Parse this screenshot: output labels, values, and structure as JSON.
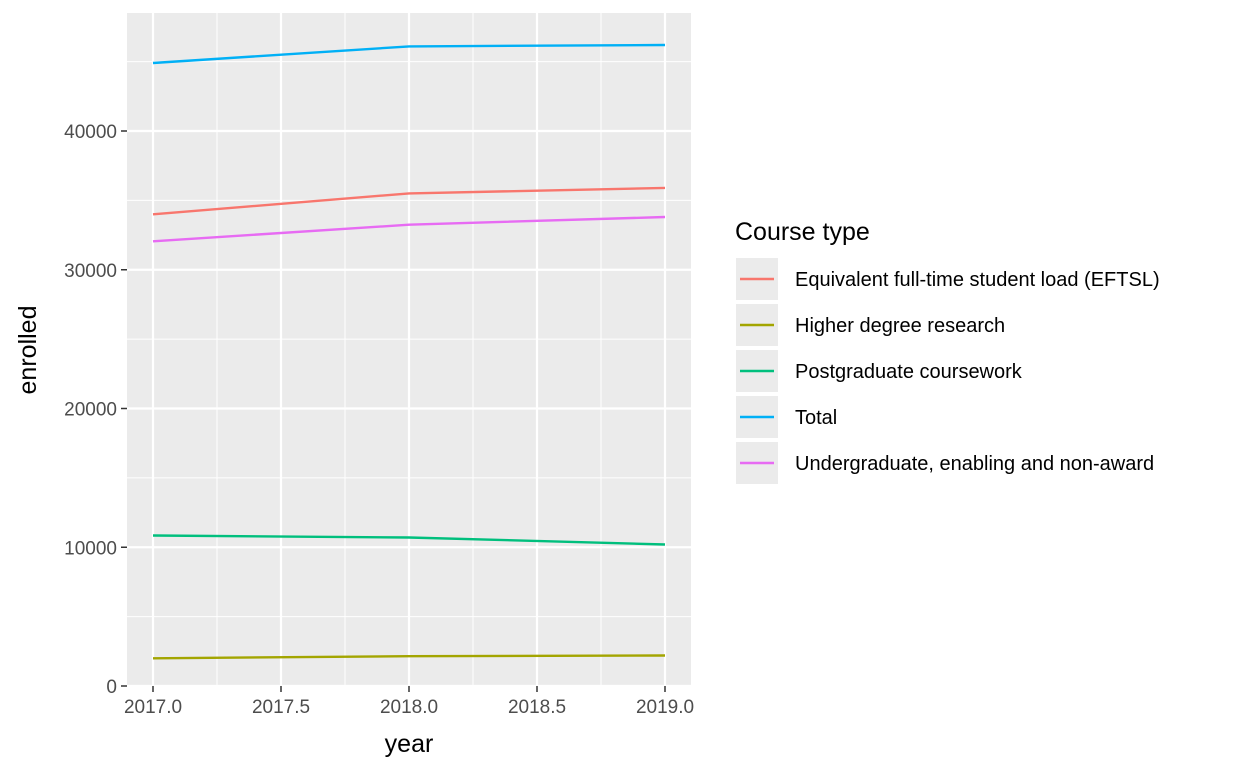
{
  "chart_data": {
    "type": "line",
    "title": "",
    "xlabel": "year",
    "ylabel": "enrolled",
    "xlim": [
      2017.0,
      2019.0
    ],
    "ylim": [
      0,
      47000
    ],
    "x_ticks": [
      2017.0,
      2017.5,
      2018.0,
      2018.5,
      2019.0
    ],
    "x_tick_labels": [
      "2017.0",
      "2017.5",
      "2018.0",
      "2018.5",
      "2019.0"
    ],
    "y_ticks": [
      0,
      10000,
      20000,
      30000,
      40000
    ],
    "y_tick_labels": [
      "0",
      "10000",
      "20000",
      "30000",
      "40000"
    ],
    "grid": true,
    "legend": {
      "title": "Course type",
      "placement": "right"
    },
    "x": [
      2017,
      2018,
      2019
    ],
    "series": [
      {
        "name": "Equivalent full-time student load (EFTSL)",
        "color": "#F8766D",
        "values": [
          34000,
          35500,
          35900
        ]
      },
      {
        "name": "Higher degree research",
        "color": "#A3A500",
        "values": [
          2000,
          2150,
          2200
        ]
      },
      {
        "name": "Postgraduate coursework",
        "color": "#00BF7D",
        "values": [
          10850,
          10700,
          10200
        ]
      },
      {
        "name": "Total",
        "color": "#00B0F6",
        "values": [
          44900,
          46100,
          46200
        ]
      },
      {
        "name": "Undergraduate, enabling and non-award",
        "color": "#E76BF3",
        "values": [
          32050,
          33250,
          33800
        ]
      }
    ]
  }
}
